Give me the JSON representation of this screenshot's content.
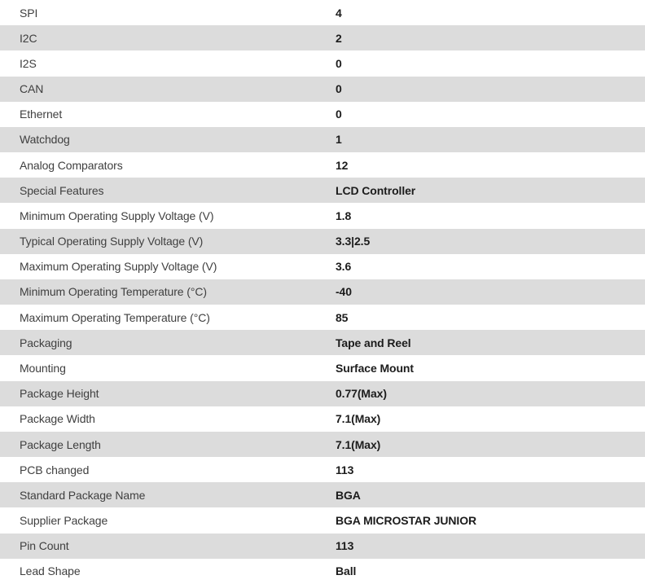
{
  "table": {
    "rows": [
      {
        "label": "SPI",
        "value": "4"
      },
      {
        "label": "I2C",
        "value": "2"
      },
      {
        "label": "I2S",
        "value": "0"
      },
      {
        "label": "CAN",
        "value": "0"
      },
      {
        "label": "Ethernet",
        "value": "0"
      },
      {
        "label": "Watchdog",
        "value": "1"
      },
      {
        "label": "Analog Comparators",
        "value": "12"
      },
      {
        "label": "Special Features",
        "value": "LCD Controller"
      },
      {
        "label": "Minimum Operating Supply Voltage (V)",
        "value": "1.8"
      },
      {
        "label": "Typical Operating Supply Voltage (V)",
        "value": "3.3|2.5"
      },
      {
        "label": "Maximum Operating Supply Voltage (V)",
        "value": "3.6"
      },
      {
        "label": "Minimum Operating Temperature (°C)",
        "value": "-40"
      },
      {
        "label": "Maximum Operating Temperature (°C)",
        "value": "85"
      },
      {
        "label": "Packaging",
        "value": "Tape and Reel"
      },
      {
        "label": "Mounting",
        "value": "Surface Mount"
      },
      {
        "label": "Package Height",
        "value": "0.77(Max)"
      },
      {
        "label": "Package Width",
        "value": "7.1(Max)"
      },
      {
        "label": "Package Length",
        "value": "7.1(Max)"
      },
      {
        "label": "PCB changed",
        "value": "113"
      },
      {
        "label": "Standard Package Name",
        "value": "BGA"
      },
      {
        "label": "Supplier Package",
        "value": "BGA MICROSTAR JUNIOR"
      },
      {
        "label": "Pin Count",
        "value": "113"
      },
      {
        "label": "Lead Shape",
        "value": "Ball"
      }
    ],
    "colors": {
      "row_bg": "#ffffff",
      "row_alt_bg": "#dcdcdc",
      "label_color": "#3f3f3f",
      "value_color": "#1c1c1c"
    }
  }
}
